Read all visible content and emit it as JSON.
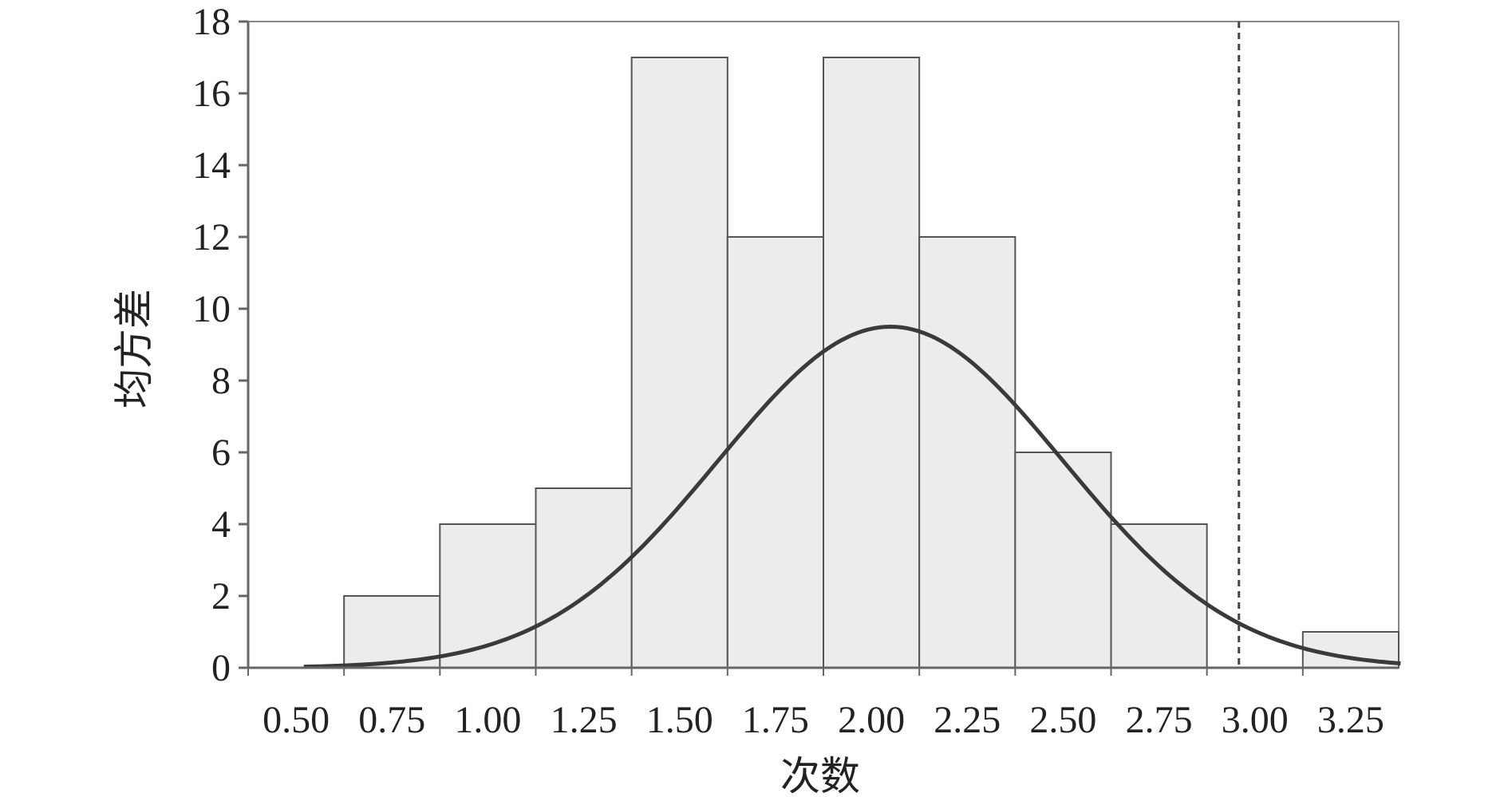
{
  "chart_data": {
    "type": "bar",
    "subtype": "histogram-with-normal-curve",
    "title": "",
    "xlabel": "次数",
    "ylabel": "均方差",
    "xlim": [
      0.5,
      3.25
    ],
    "ylim": [
      0,
      18
    ],
    "x_ticks": [
      "0.50",
      "0.75",
      "1.00",
      "1.25",
      "1.50",
      "1.75",
      "2.00",
      "2.25",
      "2.50",
      "2.75",
      "3.00",
      "3.25"
    ],
    "y_ticks": [
      "0",
      "2",
      "4",
      "6",
      "8",
      "10",
      "12",
      "14",
      "16",
      "18"
    ],
    "bins": [
      {
        "from": 0.625,
        "to": 0.875,
        "value": 2
      },
      {
        "from": 0.875,
        "to": 1.125,
        "value": 4
      },
      {
        "from": 1.125,
        "to": 1.375,
        "value": 5
      },
      {
        "from": 1.375,
        "to": 1.625,
        "value": 17
      },
      {
        "from": 1.625,
        "to": 1.875,
        "value": 12
      },
      {
        "from": 1.875,
        "to": 2.125,
        "value": 17
      },
      {
        "from": 2.125,
        "to": 2.375,
        "value": 12
      },
      {
        "from": 2.375,
        "to": 2.625,
        "value": 6
      },
      {
        "from": 2.625,
        "to": 2.875,
        "value": 4
      },
      {
        "from": 3.125,
        "to": 3.375,
        "value": 1
      }
    ],
    "normal_curve": {
      "mean": 2.05,
      "sd": 0.45,
      "peak": 9.5,
      "x_from": 0.52,
      "x_to": 3.38
    },
    "reference_line": {
      "x": 3.0,
      "style": "dashed"
    },
    "grid": false,
    "legend": "none",
    "colors": {
      "bar_fill": "#ececec",
      "bar_edge": "#555555",
      "curve": "#3a3a3a",
      "axis": "#666666",
      "reference_line": "#444444"
    }
  }
}
